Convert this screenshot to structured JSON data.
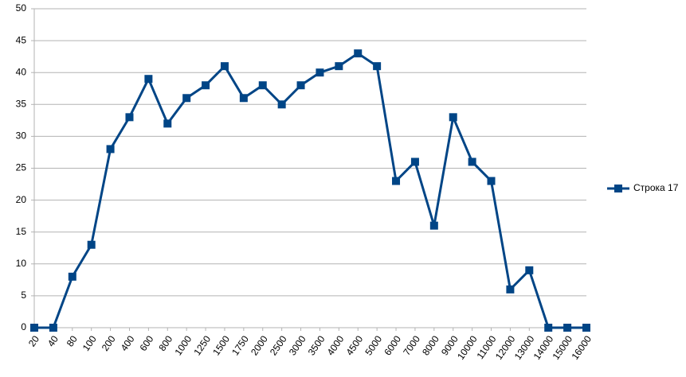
{
  "chart_data": {
    "type": "line",
    "categories": [
      "20",
      "40",
      "80",
      "100",
      "200",
      "400",
      "600",
      "800",
      "1000",
      "1250",
      "1500",
      "1750",
      "2000",
      "2500",
      "3000",
      "3500",
      "4000",
      "4500",
      "5000",
      "6000",
      "7000",
      "8000",
      "9000",
      "10000",
      "11000",
      "12000",
      "13000",
      "14000",
      "15000",
      "16000"
    ],
    "series": [
      {
        "name": "Строка 17",
        "color": "#004586",
        "values": [
          0,
          0,
          8,
          13,
          28,
          33,
          39,
          32,
          36,
          38,
          41,
          36,
          38,
          35,
          38,
          40,
          41,
          43,
          41,
          23,
          26,
          16,
          33,
          26,
          23,
          6,
          9,
          0,
          0,
          0
        ]
      }
    ],
    "ylim": [
      0,
      50
    ],
    "yticks": [
      0,
      5,
      10,
      15,
      20,
      25,
      30,
      35,
      40,
      45,
      50
    ],
    "grid": true,
    "legend": "right"
  }
}
